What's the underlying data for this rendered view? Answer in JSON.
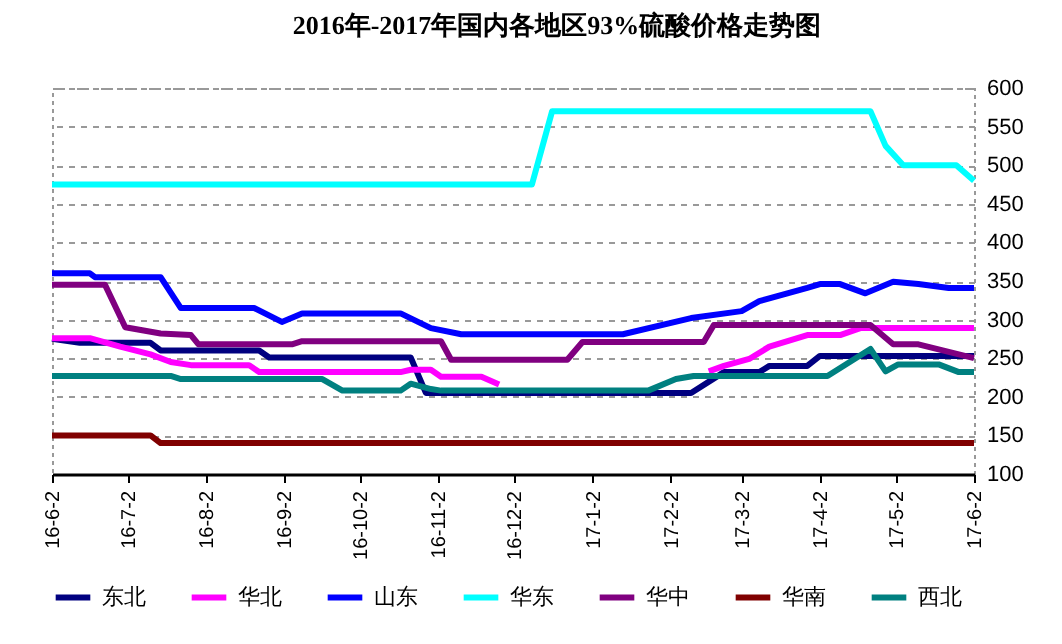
{
  "chart_data": {
    "type": "line",
    "title": "2016年-2017年国内各地区93%硫酸价格走势图",
    "xlim": [
      "2016-06-02",
      "2017-06-02"
    ],
    "xticks": [
      {
        "value": "2016-06-02",
        "label": "16-6-2"
      },
      {
        "value": "2016-07-02",
        "label": "16-7-2"
      },
      {
        "value": "2016-08-02",
        "label": "16-8-2"
      },
      {
        "value": "2016-09-02",
        "label": "16-9-2"
      },
      {
        "value": "2016-10-02",
        "label": "16-10-2"
      },
      {
        "value": "2016-11-02",
        "label": "16-11-2"
      },
      {
        "value": "2016-12-02",
        "label": "16-12-2"
      },
      {
        "value": "2017-01-02",
        "label": "17-1-2"
      },
      {
        "value": "2017-02-02",
        "label": "17-2-2"
      },
      {
        "value": "2017-03-02",
        "label": "17-3-2"
      },
      {
        "value": "2017-04-02",
        "label": "17-4-2"
      },
      {
        "value": "2017-05-02",
        "label": "17-5-2"
      },
      {
        "value": "2017-06-02",
        "label": "17-6-2"
      }
    ],
    "ylim": [
      100,
      600
    ],
    "yticks": [
      100,
      150,
      200,
      250,
      300,
      350,
      400,
      450,
      500,
      550,
      600
    ],
    "grid": "y",
    "legend": "bottom",
    "marker": "none",
    "line_style": "solid",
    "series": [
      {
        "name": "东北",
        "color": "#000080",
        "x": [
          "2016-06-02",
          "2016-06-13",
          "2016-07-11",
          "2016-07-15",
          "2016-08-23",
          "2016-08-27",
          "2016-10-22",
          "2016-10-28",
          "2017-02-10",
          "2017-02-23",
          "2017-03-09",
          "2017-03-13",
          "2017-03-28",
          "2017-04-02",
          "2017-06-02"
        ],
        "values": [
          275,
          270,
          270,
          260,
          260,
          251,
          251,
          205,
          205,
          232,
          232,
          240,
          240,
          253,
          253
        ]
      },
      {
        "name": "华北",
        "color": "#ff00ff",
        "x": [
          "2016-06-02",
          "2016-06-17",
          "2016-06-29",
          "2016-07-11",
          "2016-07-19",
          "2016-07-27",
          "2016-08-19",
          "2016-08-23",
          "2016-10-18",
          "2016-10-22",
          "2016-10-30",
          "2016-11-03",
          "2016-11-19",
          "2016-11-26",
          "2016-12-25",
          "2017-02-17",
          "2017-02-23",
          "2017-03-05",
          "2017-03-13",
          "2017-03-28",
          "2017-04-10",
          "2017-04-18",
          "2017-06-02"
        ],
        "values": [
          276,
          276,
          265,
          255,
          245,
          241,
          241,
          232,
          232,
          235,
          235,
          226,
          226,
          216,
          null,
          233,
          240,
          249,
          265,
          280,
          280,
          289,
          289
        ]
      },
      {
        "name": "山东",
        "color": "#0000ff",
        "x": [
          "2016-06-02",
          "2016-06-17",
          "2016-06-19",
          "2016-07-15",
          "2016-07-23",
          "2016-08-21",
          "2016-09-01",
          "2016-09-09",
          "2016-10-18",
          "2016-10-30",
          "2016-11-11",
          "2017-01-14",
          "2017-02-10",
          "2017-03-02",
          "2017-03-09",
          "2017-03-28",
          "2017-04-02",
          "2017-04-10",
          "2017-04-20",
          "2017-05-01",
          "2017-05-11",
          "2017-05-23",
          "2017-06-02"
        ],
        "values": [
          360,
          360,
          355,
          355,
          315,
          315,
          297,
          308,
          308,
          289,
          281,
          281,
          302,
          311,
          324,
          341,
          346,
          346,
          334,
          349,
          346,
          341,
          341
        ]
      },
      {
        "name": "华东",
        "color": "#00ffff",
        "x": [
          "2016-06-02",
          "2016-12-09",
          "2016-12-17",
          "2017-04-22",
          "2017-04-28",
          "2017-05-05",
          "2017-05-26",
          "2017-06-02"
        ],
        "values": [
          475,
          475,
          570,
          570,
          525,
          500,
          500,
          480
        ]
      },
      {
        "name": "华中",
        "color": "#800080",
        "x": [
          "2016-06-02",
          "2016-06-23",
          "2016-07-01",
          "2016-07-15",
          "2016-07-27",
          "2016-07-30",
          "2016-09-05",
          "2016-09-09",
          "2016-11-03",
          "2016-11-07",
          "2016-12-23",
          "2016-12-29",
          "2017-02-15",
          "2017-02-19",
          "2017-04-22",
          "2017-05-01",
          "2017-05-11",
          "2017-06-02"
        ],
        "values": [
          345,
          345,
          290,
          282,
          280,
          268,
          268,
          272,
          272,
          248,
          248,
          271,
          271,
          293,
          293,
          268,
          268,
          250
        ]
      },
      {
        "name": "华南",
        "color": "#800000",
        "x": [
          "2016-06-02",
          "2016-07-11",
          "2016-07-15",
          "2017-06-02"
        ],
        "values": [
          150,
          150,
          140,
          140
        ]
      },
      {
        "name": "西北",
        "color": "#008080",
        "x": [
          "2016-06-02",
          "2016-07-19",
          "2016-07-23",
          "2016-09-17",
          "2016-09-25",
          "2016-10-18",
          "2016-10-22",
          "2016-10-30",
          "2016-11-03",
          "2017-01-24",
          "2017-02-04",
          "2017-02-11",
          "2017-04-05",
          "2017-04-22",
          "2017-04-28",
          "2017-05-03",
          "2017-05-19",
          "2017-05-27",
          "2017-06-02"
        ],
        "values": [
          227,
          227,
          223,
          223,
          208,
          208,
          217,
          210,
          208,
          208,
          223,
          227,
          227,
          262,
          233,
          242,
          242,
          232,
          232
        ]
      }
    ]
  }
}
